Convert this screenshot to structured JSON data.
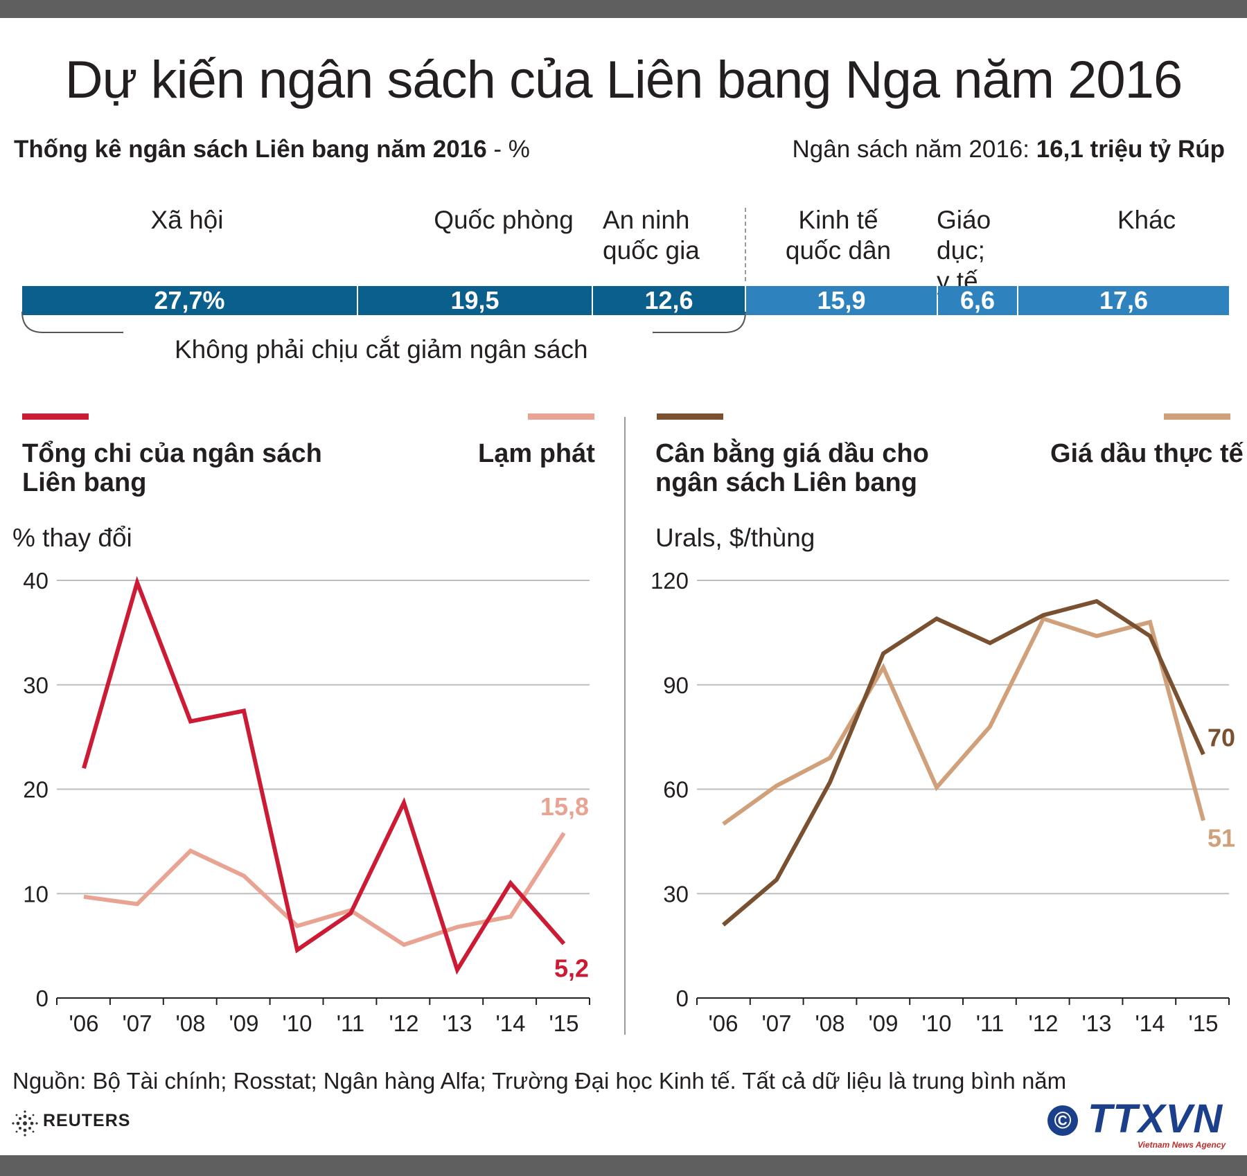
{
  "title": "Dự kiến ngân sách của Liên bang Nga năm 2016",
  "subtitle_left": {
    "bold": "Thống kê ngân sách Liên bang năm 2016",
    "rest": " - %"
  },
  "subtitle_right": {
    "text": "Ngân sách năm 2016: ",
    "bold": "16,1 triệu tỷ Rúp"
  },
  "budget": {
    "categories": [
      {
        "label": "Xã hội",
        "value": 27.7,
        "value_label": "27,7%"
      },
      {
        "label": "Quốc phòng",
        "value": 19.5,
        "value_label": "19,5"
      },
      {
        "label": "An ninh\nquốc gia",
        "value": 12.6,
        "value_label": "12,6"
      },
      {
        "label": "Kinh tế\nquốc dân",
        "value": 15.9,
        "value_label": "15,9"
      },
      {
        "label": "Giáo dục;\ny tế",
        "value": 6.6,
        "value_label": "6,6"
      },
      {
        "label": "Khác",
        "value": 17.6,
        "value_label": "17,6"
      }
    ],
    "protected_note": "Không phải chịu cắt giảm ngân sách"
  },
  "colors": {
    "spending": "#cc1b35",
    "inflation": "#e9a392",
    "breakeven": "#7a5130",
    "actual": "#cfa07a",
    "bar_dark": "#0a5f8d",
    "bar_light": "#2e82be"
  },
  "chart_data": [
    {
      "type": "line",
      "ylabel": "% thay đổi",
      "ylim": [
        0,
        40
      ],
      "yticks": [
        "0",
        "10",
        "20",
        "30",
        "40"
      ],
      "categories": [
        "'06",
        "'07",
        "'08",
        "'09",
        "'10",
        "'11",
        "'12",
        "'13",
        "'14",
        "'15"
      ],
      "series": [
        {
          "name": "Tổng chi của ngân sách\nLiên bang",
          "values": [
            22,
            39.8,
            26.5,
            27.5,
            4.6,
            8.1,
            18.7,
            2.7,
            11,
            5.2
          ],
          "end_label": "5,2"
        },
        {
          "name": "Lạm phát",
          "values": [
            9.7,
            9,
            14.1,
            11.7,
            6.9,
            8.4,
            5.1,
            6.8,
            7.8,
            15.8
          ],
          "end_label": "15,8"
        }
      ]
    },
    {
      "type": "line",
      "ylabel": "Urals, $/thùng",
      "ylim": [
        0,
        120
      ],
      "yticks": [
        "0",
        "30",
        "60",
        "90",
        "120"
      ],
      "categories": [
        "'06",
        "'07",
        "'08",
        "'09",
        "'10",
        "'11",
        "'12",
        "'13",
        "'14",
        "'15"
      ],
      "series": [
        {
          "name": "Cân bằng giá dầu cho\nngân sách Liên bang",
          "values": [
            21,
            34,
            62,
            99,
            109,
            102,
            110,
            114,
            104,
            70
          ],
          "end_label": "70"
        },
        {
          "name": "Giá dầu thực tế",
          "values": [
            50,
            61,
            69,
            95,
            60.5,
            78,
            109,
            104,
            108,
            51
          ],
          "end_label": "51"
        }
      ]
    }
  ],
  "source": "Nguồn: Bộ Tài chính; Rosstat; Ngân hàng Alfa; Trường Đại học Kinh tế. Tất cả dữ liệu là trung bình năm",
  "credits": {
    "reuters": "REUTERS",
    "ttxvn": "TTXVN",
    "ttxvn_sub": "Vietnam News Agency",
    "copyright": "©"
  }
}
